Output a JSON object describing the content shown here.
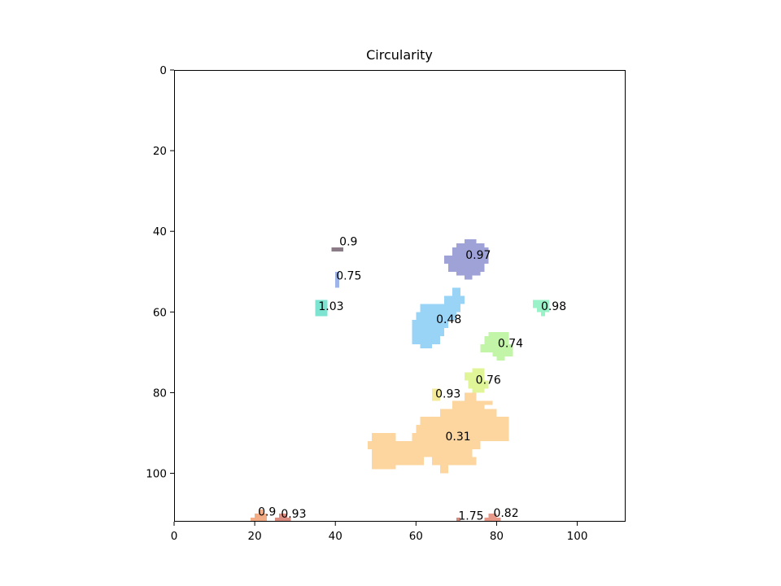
{
  "chart_data": {
    "type": "heatmap",
    "title": "Circularity",
    "xlabel": "",
    "ylabel": "",
    "xlim": [
      0,
      112
    ],
    "ylim": [
      112,
      0
    ],
    "y_axis_inverted": true,
    "grid": false,
    "x_ticks": [
      0,
      20,
      40,
      60,
      80,
      100
    ],
    "y_ticks": [
      0,
      20,
      40,
      60,
      80,
      100
    ],
    "regions": [
      {
        "label": "0.9",
        "label_x": 41.0,
        "label_y": 42.5,
        "color": "#8b7b86",
        "cells": [
          [
            39,
            42,
            44,
            45
          ]
        ]
      },
      {
        "label": "0.97",
        "label_x": 72.3,
        "label_y": 45.8,
        "color": "#9ea2d7",
        "cells": [
          [
            72,
            75,
            42,
            43
          ],
          [
            70,
            77,
            43,
            44
          ],
          [
            69,
            78,
            44,
            46
          ],
          [
            67,
            78,
            46,
            48
          ],
          [
            68,
            77,
            48,
            50
          ],
          [
            70,
            76,
            50,
            51
          ],
          [
            72,
            74,
            51,
            52
          ]
        ]
      },
      {
        "label": "0.75",
        "label_x": 40.2,
        "label_y": 51.0,
        "color": "#9fb5ea",
        "cells": [
          [
            40,
            41,
            50,
            54
          ]
        ]
      },
      {
        "label": "1.03",
        "label_x": 35.8,
        "label_y": 58.5,
        "color": "#7de4d2",
        "cells": [
          [
            35,
            38,
            57,
            61
          ]
        ]
      },
      {
        "label": "0.98",
        "label_x": 91.0,
        "label_y": 58.5,
        "color": "#9af2c8",
        "cells": [
          [
            89,
            93,
            57,
            59
          ],
          [
            90,
            93,
            59,
            60
          ],
          [
            91,
            92,
            60,
            61
          ]
        ]
      },
      {
        "label": "0.48",
        "label_x": 65.0,
        "label_y": 61.8,
        "color": "#99d4f7",
        "cells": [
          [
            69,
            71,
            54,
            56
          ],
          [
            67,
            72,
            56,
            58
          ],
          [
            61,
            71,
            58,
            60
          ],
          [
            60,
            70,
            60,
            62
          ],
          [
            59,
            68,
            62,
            64
          ],
          [
            59,
            67,
            64,
            66
          ],
          [
            59,
            66,
            66,
            68
          ],
          [
            61,
            64,
            68,
            69
          ]
        ]
      },
      {
        "label": "0.74",
        "label_x": 80.3,
        "label_y": 67.7,
        "color": "#c3f5a9",
        "cells": [
          [
            78,
            83,
            65,
            66
          ],
          [
            77,
            83,
            66,
            68
          ],
          [
            76,
            84,
            68,
            70
          ],
          [
            79,
            84,
            70,
            71
          ],
          [
            80,
            82,
            71,
            72
          ]
        ]
      },
      {
        "label": "0.76",
        "label_x": 74.8,
        "label_y": 76.8,
        "color": "#e0f597",
        "cells": [
          [
            74,
            77,
            74,
            75
          ],
          [
            72,
            77,
            75,
            77
          ],
          [
            73,
            78,
            77,
            79
          ],
          [
            74,
            77,
            79,
            80
          ]
        ]
      },
      {
        "label": "0.93",
        "label_x": 64.8,
        "label_y": 80.2,
        "color": "#f3ea9a",
        "cells": [
          [
            64,
            66,
            79,
            82
          ]
        ]
      },
      {
        "label": "0.31",
        "label_x": 67.3,
        "label_y": 90.8,
        "color": "#fdd59f",
        "cells": [
          [
            72,
            75,
            80,
            82
          ],
          [
            69,
            77,
            82,
            84
          ],
          [
            77,
            79,
            82,
            83
          ],
          [
            66,
            80,
            84,
            86
          ],
          [
            61,
            83,
            86,
            88
          ],
          [
            60,
            83,
            88,
            90
          ],
          [
            49,
            55,
            90,
            92
          ],
          [
            59,
            83,
            90,
            92
          ],
          [
            48,
            76,
            92,
            94
          ],
          [
            49,
            74,
            94,
            96
          ],
          [
            49,
            62,
            96,
            98
          ],
          [
            64,
            75,
            96,
            98
          ],
          [
            49,
            55,
            98,
            99
          ],
          [
            66,
            68,
            98,
            100
          ]
        ]
      },
      {
        "label": "0.9",
        "label_x": 20.8,
        "label_y": 109.5,
        "color": "#f3ad86",
        "cells": [
          [
            21,
            22,
            109,
            110
          ],
          [
            20,
            23,
            110,
            111
          ],
          [
            19,
            23,
            111,
            112
          ]
        ]
      },
      {
        "label": "0.93",
        "label_x": 26.5,
        "label_y": 110.0,
        "color": "#dc8d82",
        "cells": [
          [
            26,
            28,
            110,
            111
          ],
          [
            25,
            29,
            111,
            112
          ]
        ]
      },
      {
        "label": "1.75",
        "label_x": 70.5,
        "label_y": 110.5,
        "color": "#d08a7e",
        "cells": [
          [
            70,
            71,
            111,
            112
          ]
        ]
      },
      {
        "label": "0.82",
        "label_x": 79.2,
        "label_y": 109.8,
        "color": "#e89a8a",
        "cells": [
          [
            78,
            80,
            110,
            111
          ],
          [
            77,
            81,
            111,
            112
          ]
        ]
      }
    ]
  }
}
